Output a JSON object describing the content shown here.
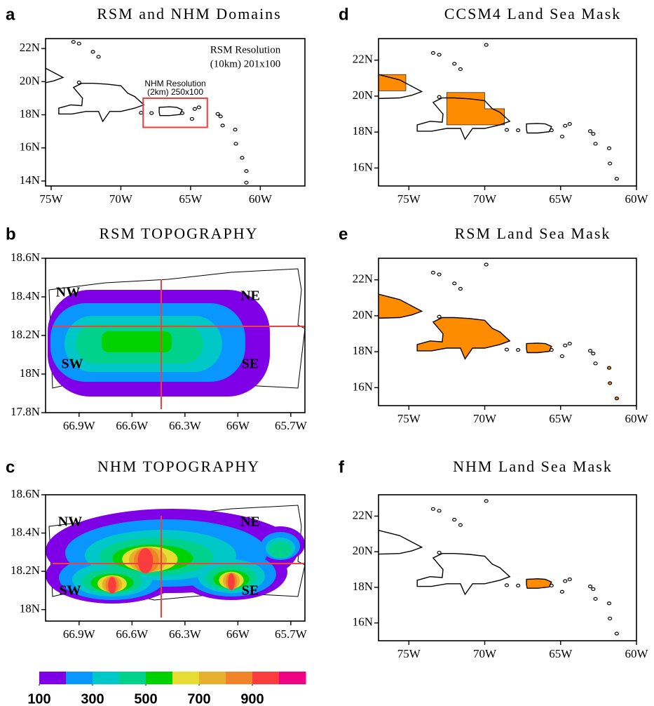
{
  "panels": [
    {
      "letter": "a",
      "title": "RSM and NHM Domains",
      "xlim": [
        -75.4,
        -56.8
      ],
      "ylim": [
        13.7,
        22.6
      ],
      "xticks": [
        {
          "value": -75,
          "label": "75W"
        },
        {
          "value": -70,
          "label": "70W"
        },
        {
          "value": -65,
          "label": "65W"
        },
        {
          "value": -60,
          "label": "60W"
        }
      ],
      "yticks": [
        {
          "value": 14,
          "label": "14N"
        },
        {
          "value": 16,
          "label": "16N"
        },
        {
          "value": 18,
          "label": "18N"
        },
        {
          "value": 20,
          "label": "20N"
        },
        {
          "value": 22,
          "label": "22N"
        }
      ],
      "annotations": [
        "RSM Resolution",
        "(10km) 201x100",
        "NHM Resolution",
        "(2km) 250x100"
      ]
    },
    {
      "letter": "b",
      "title": "RSM TOPOGRAPHY",
      "xlim": [
        -67.09,
        -65.62
      ],
      "ylim": [
        17.8,
        18.6
      ],
      "xticks": [
        {
          "value": -66.9,
          "label": "66.9W"
        },
        {
          "value": -66.6,
          "label": "66.6W"
        },
        {
          "value": -66.3,
          "label": "66.3W"
        },
        {
          "value": -66,
          "label": "66W"
        },
        {
          "value": -65.7,
          "label": "65.7W"
        }
      ],
      "yticks": [
        {
          "value": 17.8,
          "label": "17.8N"
        },
        {
          "value": 18,
          "label": "18N"
        },
        {
          "value": 18.2,
          "label": "18.2N"
        },
        {
          "value": 18.4,
          "label": "18.4N"
        },
        {
          "value": 18.6,
          "label": "18.6N"
        }
      ],
      "annotations": [
        "NW",
        "NE",
        "SW",
        "SE"
      ]
    },
    {
      "letter": "c",
      "title": "NHM TOPOGRAPHY",
      "xlim": [
        -67.09,
        -65.62
      ],
      "ylim": [
        17.94,
        18.6
      ],
      "xticks": [
        {
          "value": -66.9,
          "label": "66.9W"
        },
        {
          "value": -66.6,
          "label": "66.6W"
        },
        {
          "value": -66.3,
          "label": "66.3W"
        },
        {
          "value": -66,
          "label": "66W"
        },
        {
          "value": -65.7,
          "label": "65.7W"
        }
      ],
      "yticks": [
        {
          "value": 18,
          "label": "18N"
        },
        {
          "value": 18.2,
          "label": "18.2N"
        },
        {
          "value": 18.4,
          "label": "18.4N"
        },
        {
          "value": 18.6,
          "label": "18.6N"
        }
      ],
      "annotations": [
        "NW",
        "NE",
        "SW",
        "SE"
      ]
    },
    {
      "letter": "d",
      "title": "CCSM4 Land Sea Mask",
      "xlim": [
        -77,
        -60
      ],
      "ylim": [
        15,
        23.2
      ],
      "xticks": [
        {
          "value": -75,
          "label": "75W"
        },
        {
          "value": -70,
          "label": "70W"
        },
        {
          "value": -65,
          "label": "65W"
        },
        {
          "value": -60,
          "label": "60W"
        }
      ],
      "yticks": [
        {
          "value": 16,
          "label": "16N"
        },
        {
          "value": 18,
          "label": "18N"
        },
        {
          "value": 20,
          "label": "20N"
        },
        {
          "value": 22,
          "label": "22N"
        }
      ],
      "annotations": []
    },
    {
      "letter": "e",
      "title": "RSM Land Sea Mask",
      "xlim": [
        -77,
        -60
      ],
      "ylim": [
        15,
        23.2
      ],
      "xticks": [
        {
          "value": -75,
          "label": "75W"
        },
        {
          "value": -70,
          "label": "70W"
        },
        {
          "value": -65,
          "label": "65W"
        },
        {
          "value": -60,
          "label": "60W"
        }
      ],
      "yticks": [
        {
          "value": 16,
          "label": "16N"
        },
        {
          "value": 18,
          "label": "18N"
        },
        {
          "value": 20,
          "label": "20N"
        },
        {
          "value": 22,
          "label": "22N"
        }
      ],
      "annotations": []
    },
    {
      "letter": "f",
      "title": "NHM Land Sea Mask",
      "xlim": [
        -77,
        -60
      ],
      "ylim": [
        15,
        23.2
      ],
      "xticks": [
        {
          "value": -75,
          "label": "75W"
        },
        {
          "value": -70,
          "label": "70W"
        },
        {
          "value": -65,
          "label": "65W"
        },
        {
          "value": -60,
          "label": "60W"
        }
      ],
      "yticks": [
        {
          "value": 16,
          "label": "16N"
        },
        {
          "value": 18,
          "label": "18N"
        },
        {
          "value": 20,
          "label": "20N"
        },
        {
          "value": 22,
          "label": "22N"
        }
      ],
      "annotations": []
    }
  ],
  "colorbar": {
    "colors": [
      "#7f00e6",
      "#0a96ff",
      "#00c8c8",
      "#00d28c",
      "#00d200",
      "#e6dc32",
      "#e6af2d",
      "#f08228",
      "#fa3c3c",
      "#f00082"
    ],
    "lim": [
      100,
      1100
    ],
    "ticks": [
      100,
      300,
      500,
      700,
      900
    ]
  }
}
